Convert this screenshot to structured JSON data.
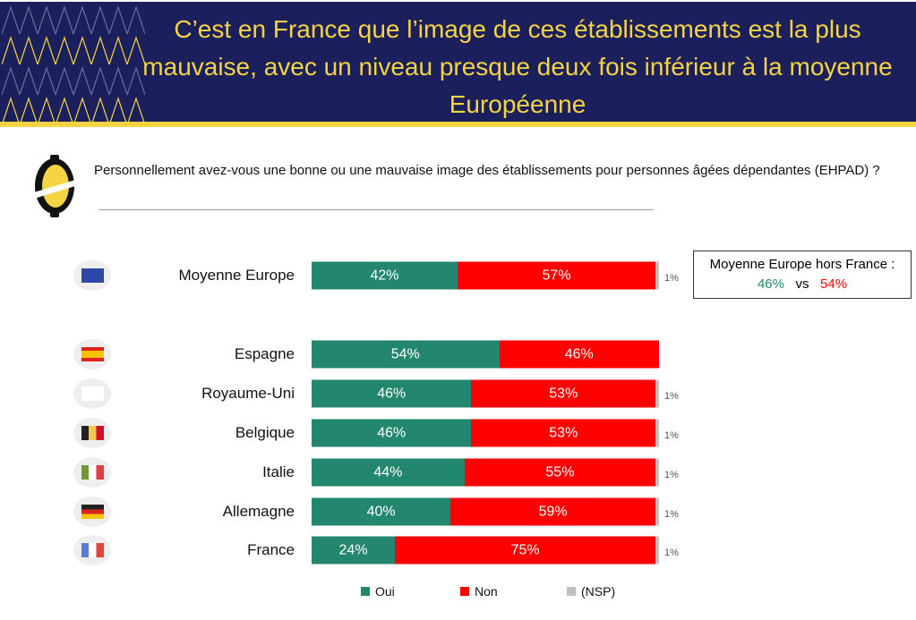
{
  "title": "C’est en France que l’image de ces établissements est la plus mauvaise, avec un niveau presque deux fois inférieur à la moyenne Européenne",
  "question": "Personnellement avez-vous une bonne ou une mauvaise image des établissements pour personnes âgées dépendantes (EHPAD) ?",
  "box": {
    "title": "Moyenne Europe hors France :",
    "oui": "46%",
    "vs": "vs",
    "non": "54%"
  },
  "colors": {
    "oui": "#23876f",
    "non": "#ff0000",
    "nsp": "#bfbfbf",
    "navy": "#1b1f5b",
    "yellow": "#f5d443"
  },
  "chart_data": {
    "type": "bar",
    "stacked": true,
    "orientation": "horizontal",
    "categories": [
      "Moyenne Europe",
      "Espagne",
      "Royaume-Uni",
      "Belgique",
      "Italie",
      "Allemagne",
      "France"
    ],
    "series": [
      {
        "name": "Oui",
        "values": [
          42,
          54,
          46,
          46,
          44,
          40,
          24
        ]
      },
      {
        "name": "Non",
        "values": [
          57,
          46,
          53,
          53,
          55,
          59,
          75
        ]
      },
      {
        "name": "(NSP)",
        "values": [
          1,
          0,
          1,
          1,
          1,
          1,
          1
        ]
      }
    ],
    "labels": {
      "oui": [
        "42%",
        "54%",
        "46%",
        "46%",
        "44%",
        "40%",
        "24%"
      ],
      "non": [
        "57%",
        "46%",
        "53%",
        "53%",
        "55%",
        "59%",
        "75%"
      ],
      "nsp": [
        "1%",
        "",
        "1%",
        "1%",
        "1%",
        "1%",
        "1%"
      ]
    },
    "flags": [
      "eu-flag-icon",
      "spain-flag-icon",
      "uk-flag-icon",
      "belgium-flag-icon",
      "italy-flag-icon",
      "germany-flag-icon",
      "france-flag-icon"
    ],
    "legend": [
      "Oui",
      "Non",
      "(NSP)"
    ],
    "legend_position": "bottom"
  }
}
